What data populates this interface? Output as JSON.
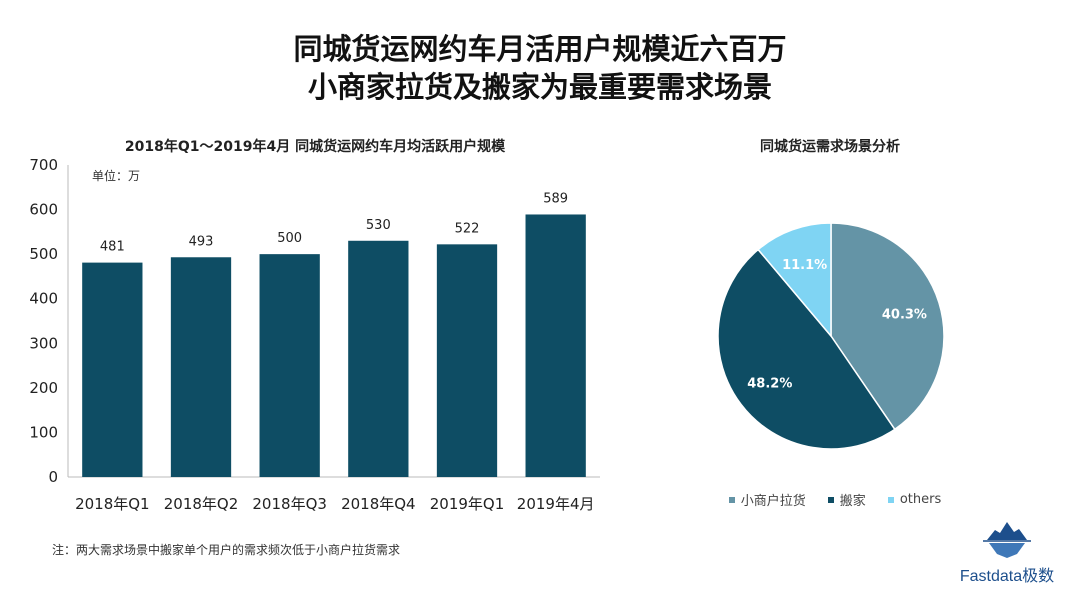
{
  "title": {
    "line1": "同城货运网约车月活用户规模近六百万",
    "line2": "小商家拉货及搬家为最重要需求场景"
  },
  "unit_label": "单位：万",
  "footnote": "注：两大需求场景中搬家单个用户的需求频次低于小商户拉货需求",
  "brand": {
    "name": "Fastdata极数",
    "icon": "iceberg-icon",
    "color": "#1d4f8c"
  },
  "chart_data": [
    {
      "type": "bar",
      "title": "2018年Q1～2019年4月 同城货运网约车月均活跃用户规模",
      "categories": [
        "2018年Q1",
        "2018年Q2",
        "2018年Q3",
        "2018年Q4",
        "2019年Q1",
        "2019年4月"
      ],
      "values": [
        481,
        493,
        500,
        530,
        522,
        589
      ],
      "ylim": [
        0,
        700
      ],
      "yticks": [
        0,
        100,
        200,
        300,
        400,
        500,
        600,
        700
      ],
      "grid": false,
      "color": "#0e4d64"
    },
    {
      "type": "pie",
      "title": "同城货运需求场景分析",
      "labels": [
        "小商户拉货",
        "搬家",
        "others"
      ],
      "values": [
        40.3,
        48.2,
        11.1
      ],
      "value_labels": [
        "40.3%",
        "48.2%",
        "11.1%"
      ],
      "colors": [
        "#6494a6",
        "#0e4d64",
        "#7fd4f3"
      ],
      "legend": "bottom"
    }
  ]
}
